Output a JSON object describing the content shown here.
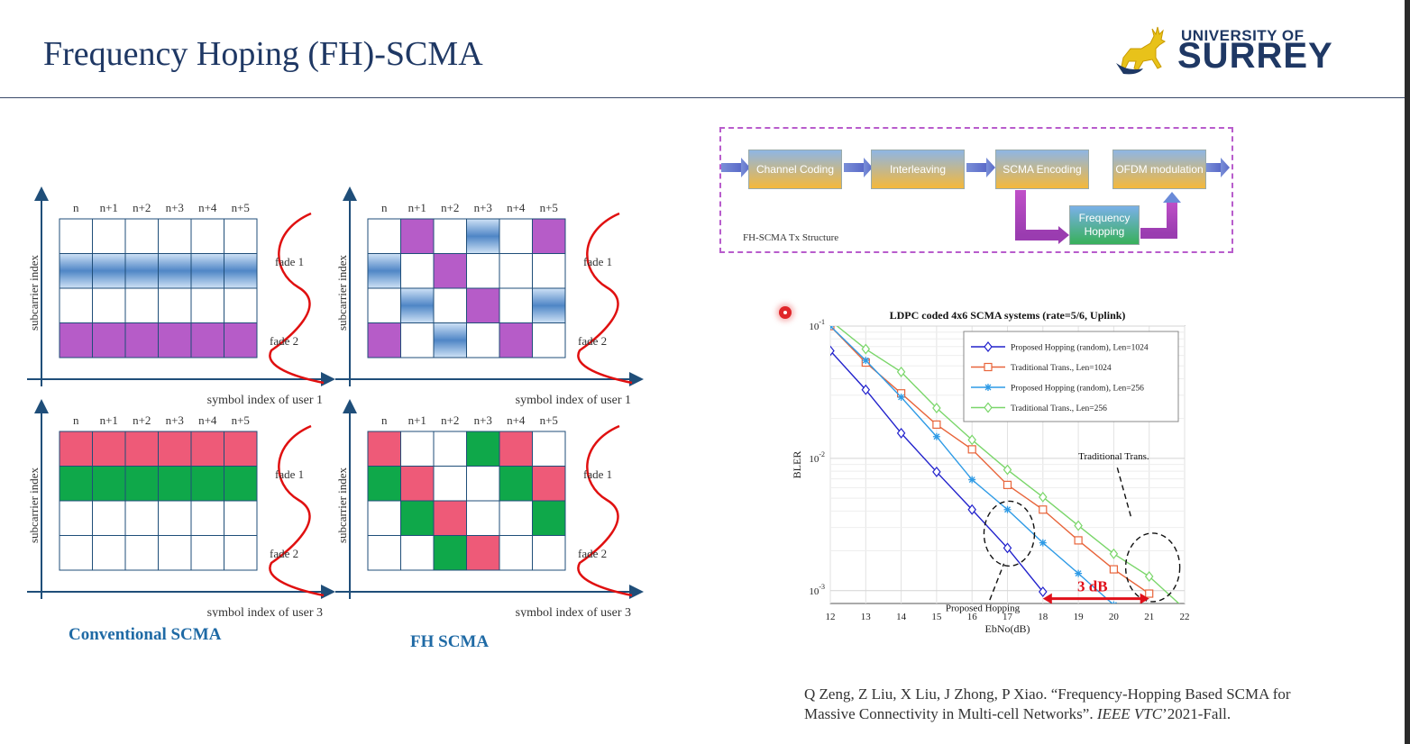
{
  "slide": {
    "title": "Frequency Hoping (FH)-SCMA",
    "colors": {
      "title": "#1f3864",
      "caption": "#1f6aa5",
      "blue_cell": "#4f86c6",
      "purple_cell": "#b65cc8",
      "pink_cell": "#ee5a78",
      "green_cell": "#0fa84a",
      "fade_curve": "#e01010"
    }
  },
  "logo": {
    "line1": "UNIVERSITY OF",
    "line2": "SURREY",
    "icon": "stag-icon"
  },
  "grids": {
    "col_labels": [
      "n",
      "n+1",
      "n+2",
      "n+3",
      "n+4",
      "n+5"
    ],
    "y_axis_label": "subcarrier index",
    "fade1": "fade 1",
    "fade2": "fade 2",
    "x_axis_user1": "symbol index of user 1",
    "x_axis_user3": "symbol index of user 3"
  },
  "captions": {
    "left": "Conventional SCMA",
    "right": "FH SCMA"
  },
  "tx_structure": {
    "label": "FH-SCMA Tx Structure",
    "blocks": [
      "Channel Coding",
      "Interleaving",
      "SCMA Encoding",
      "OFDM modulation",
      "Frequency Hopping"
    ]
  },
  "chart_data": {
    "type": "line",
    "title": "LDPC coded 4x6 SCMA systems (rate=5/6, Uplink)",
    "xlabel": "EbNo(dB)",
    "ylabel": "BLER",
    "xlim": [
      12,
      22
    ],
    "ylim": [
      0.0008,
      0.1
    ],
    "yscale": "log",
    "x_ticks": [
      "12",
      "13",
      "14",
      "15",
      "16",
      "17",
      "18",
      "19",
      "20",
      "21",
      "22"
    ],
    "y_ticks": [
      {
        "base": "10",
        "exp": "-1",
        "value": 0.1
      },
      {
        "base": "10",
        "exp": "-2",
        "value": 0.01
      },
      {
        "base": "10",
        "exp": "-3",
        "value": 0.001
      }
    ],
    "grid": true,
    "legend_position": "top-right",
    "series": [
      {
        "name": "Proposed Hopping (random), Len=1024",
        "color": "#2222cc",
        "marker": "diamond",
        "x": [
          12,
          13,
          14,
          15,
          16,
          17,
          18
        ],
        "y": [
          0.065,
          0.033,
          0.0155,
          0.0079,
          0.0041,
          0.0021,
          0.00098
        ]
      },
      {
        "name": "Traditional Trans., Len=1024",
        "color": "#e8643a",
        "marker": "square",
        "x": [
          12,
          13,
          14,
          15,
          16,
          17,
          18,
          19,
          20,
          21
        ],
        "y": [
          0.1,
          0.053,
          0.031,
          0.018,
          0.0117,
          0.0063,
          0.0041,
          0.0024,
          0.00145,
          0.00095
        ]
      },
      {
        "name": "Proposed Hopping (random), Len=256",
        "color": "#2f9be6",
        "marker": "star",
        "x": [
          12,
          13,
          14,
          15,
          16,
          17,
          18,
          19,
          20
        ],
        "y": [
          0.1,
          0.055,
          0.029,
          0.0146,
          0.0069,
          0.0041,
          0.0023,
          0.00135,
          0.00078
        ]
      },
      {
        "name": "Traditional Trans., Len=256",
        "color": "#7ad66a",
        "marker": "diamond",
        "x": [
          12,
          13,
          14,
          15,
          16,
          17,
          18,
          19,
          20,
          21,
          22
        ],
        "y": [
          0.11,
          0.067,
          0.045,
          0.024,
          0.0138,
          0.0082,
          0.0051,
          0.0031,
          0.0019,
          0.00128,
          0.00073
        ]
      }
    ],
    "annotations": {
      "traditional": "Traditional Trans.",
      "proposed": "Proposed Hopping",
      "gain": "3 dB"
    }
  },
  "reference": {
    "line1": "Q Zeng, Z Liu, X Liu, J Zhong, P Xiao. “Frequency-Hopping Based SCMA for",
    "line2_pre": "Massive Connectivity in Multi-cell Networks”.",
    "line2_venue": "IEEE VTC",
    "line2_post": "’2021-Fall."
  }
}
